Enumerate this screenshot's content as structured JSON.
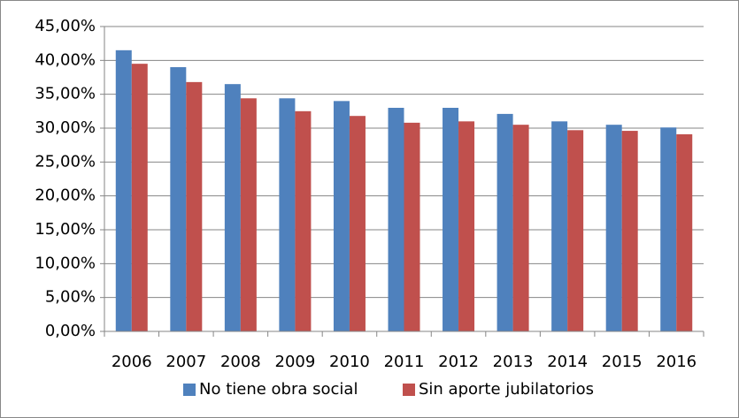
{
  "chart_data": {
    "type": "bar",
    "categories": [
      "2006",
      "2007",
      "2008",
      "2009",
      "2010",
      "2011",
      "2012",
      "2013",
      "2014",
      "2015",
      "2016"
    ],
    "series": [
      {
        "name": "No tiene obra social",
        "color": "#4f81bd",
        "values": [
          41.5,
          39.0,
          36.5,
          34.4,
          34.0,
          33.0,
          33.0,
          32.1,
          31.0,
          30.5,
          30.1
        ]
      },
      {
        "name": "Sin aporte jubilatorios",
        "color": "#c0504d",
        "values": [
          39.5,
          36.8,
          34.4,
          32.5,
          31.8,
          30.8,
          31.0,
          30.5,
          29.7,
          29.6,
          29.1
        ]
      }
    ],
    "ylim": [
      0,
      45
    ],
    "yticks": [
      {
        "value": 0,
        "label": "0,00%"
      },
      {
        "value": 5,
        "label": "5,00%"
      },
      {
        "value": 10,
        "label": "10,00%"
      },
      {
        "value": 15,
        "label": "15,00%"
      },
      {
        "value": 20,
        "label": "20,00%"
      },
      {
        "value": 25,
        "label": "25,00%"
      },
      {
        "value": 30,
        "label": "30,00%"
      },
      {
        "value": 35,
        "label": "35,00%"
      },
      {
        "value": 40,
        "label": "40,00%"
      },
      {
        "value": 45,
        "label": "45,00%"
      }
    ],
    "grid": true,
    "legend": "bottom"
  }
}
